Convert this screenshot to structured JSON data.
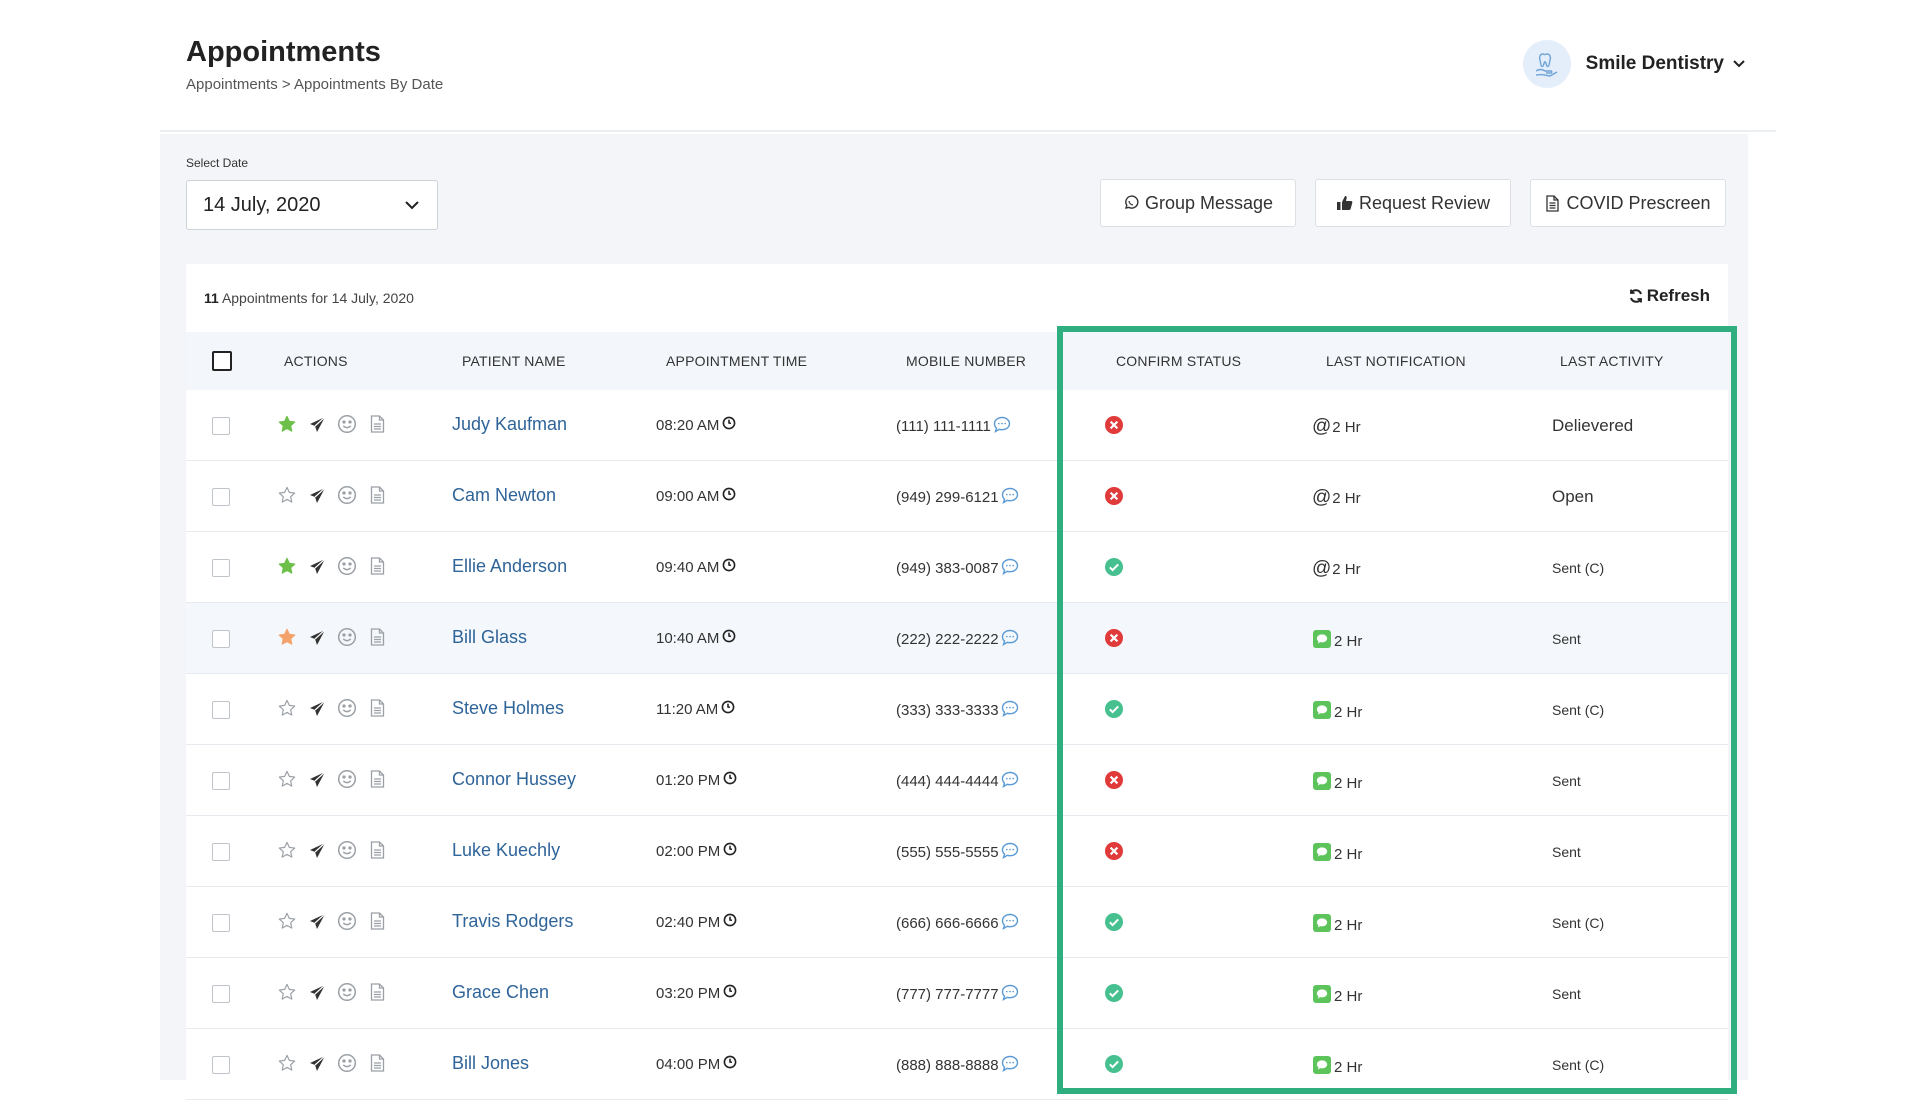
{
  "header": {
    "title": "Appointments",
    "breadcrumb": "Appointments > Appointments By Date",
    "practice_name": "Smile Dentistry"
  },
  "date_picker": {
    "label": "Select Date",
    "value": "14 July, 2020"
  },
  "toolbar": {
    "group_message": "Group Message",
    "request_review": "Request Review",
    "covid_prescreen": "COVID Prescreen"
  },
  "card": {
    "count": "11",
    "count_suffix": "Appointments for 14 July, 2020",
    "refresh_label": "Refresh"
  },
  "columns": {
    "actions": "ACTIONS",
    "patient_name": "PATIENT NAME",
    "appointment_time": "APPOINTMENT TIME",
    "mobile_number": "MOBILE NUMBER",
    "confirm_status": "CONFIRM STATUS",
    "last_notification": "LAST NOTIFICATION",
    "last_activity": "LAST ACTIVITY"
  },
  "colors": {
    "star_green": "#6cc04a",
    "star_orange": "#f4a26a",
    "status_red": "#e03a3a",
    "status_green": "#47c08f",
    "link_blue": "#2f6499",
    "highlight_frame": "#2fae7f"
  },
  "rows": [
    {
      "name": "Judy Kaufman",
      "time": "08:20 AM",
      "mobile": "(111) 111-1111",
      "star": "green",
      "status": "declined",
      "notif_icon": "at-icon",
      "notif": "2 Hr",
      "activity": "Delievered",
      "highlighted": false
    },
    {
      "name": "Cam Newton",
      "time": "09:00 AM",
      "mobile": "(949) 299-6121",
      "star": "none",
      "status": "declined",
      "notif_icon": "at-icon",
      "notif": "2 Hr",
      "activity": "Open",
      "highlighted": false
    },
    {
      "name": "Ellie Anderson",
      "time": "09:40 AM",
      "mobile": "(949) 383-0087",
      "star": "green",
      "status": "confirmed",
      "notif_icon": "at-icon",
      "notif": "2 Hr",
      "activity": "Sent (C)",
      "highlighted": false
    },
    {
      "name": "Bill Glass",
      "time": "10:40 AM",
      "mobile": "(222) 222-2222",
      "star": "orange",
      "status": "declined",
      "notif_icon": "sms-icon",
      "notif": "2 Hr",
      "activity": "Sent",
      "highlighted": true
    },
    {
      "name": "Steve Holmes",
      "time": "11:20 AM",
      "mobile": "(333) 333-3333",
      "star": "none",
      "status": "confirmed",
      "notif_icon": "sms-icon",
      "notif": "2 Hr",
      "activity": "Sent (C)",
      "highlighted": false
    },
    {
      "name": "Connor Hussey",
      "time": "01:20 PM",
      "mobile": "(444) 444-4444",
      "star": "none",
      "status": "declined",
      "notif_icon": "sms-icon",
      "notif": "2 Hr",
      "activity": "Sent",
      "highlighted": false
    },
    {
      "name": "Luke Kuechly",
      "time": "02:00 PM",
      "mobile": "(555) 555-5555",
      "star": "none",
      "status": "declined",
      "notif_icon": "sms-icon",
      "notif": "2 Hr",
      "activity": "Sent",
      "highlighted": false
    },
    {
      "name": "Travis Rodgers",
      "time": "02:40 PM",
      "mobile": "(666) 666-6666",
      "star": "none",
      "status": "confirmed",
      "notif_icon": "sms-icon",
      "notif": "2 Hr",
      "activity": "Sent (C)",
      "highlighted": false
    },
    {
      "name": "Grace Chen",
      "time": "03:20 PM",
      "mobile": "(777) 777-7777",
      "star": "none",
      "status": "confirmed",
      "notif_icon": "sms-icon",
      "notif": "2 Hr",
      "activity": "Sent",
      "highlighted": false
    },
    {
      "name": "Bill Jones",
      "time": "04:00 PM",
      "mobile": "(888) 888-8888",
      "star": "none",
      "status": "confirmed",
      "notif_icon": "sms-icon",
      "notif": "2 Hr",
      "activity": "Sent (C)",
      "highlighted": false
    }
  ]
}
